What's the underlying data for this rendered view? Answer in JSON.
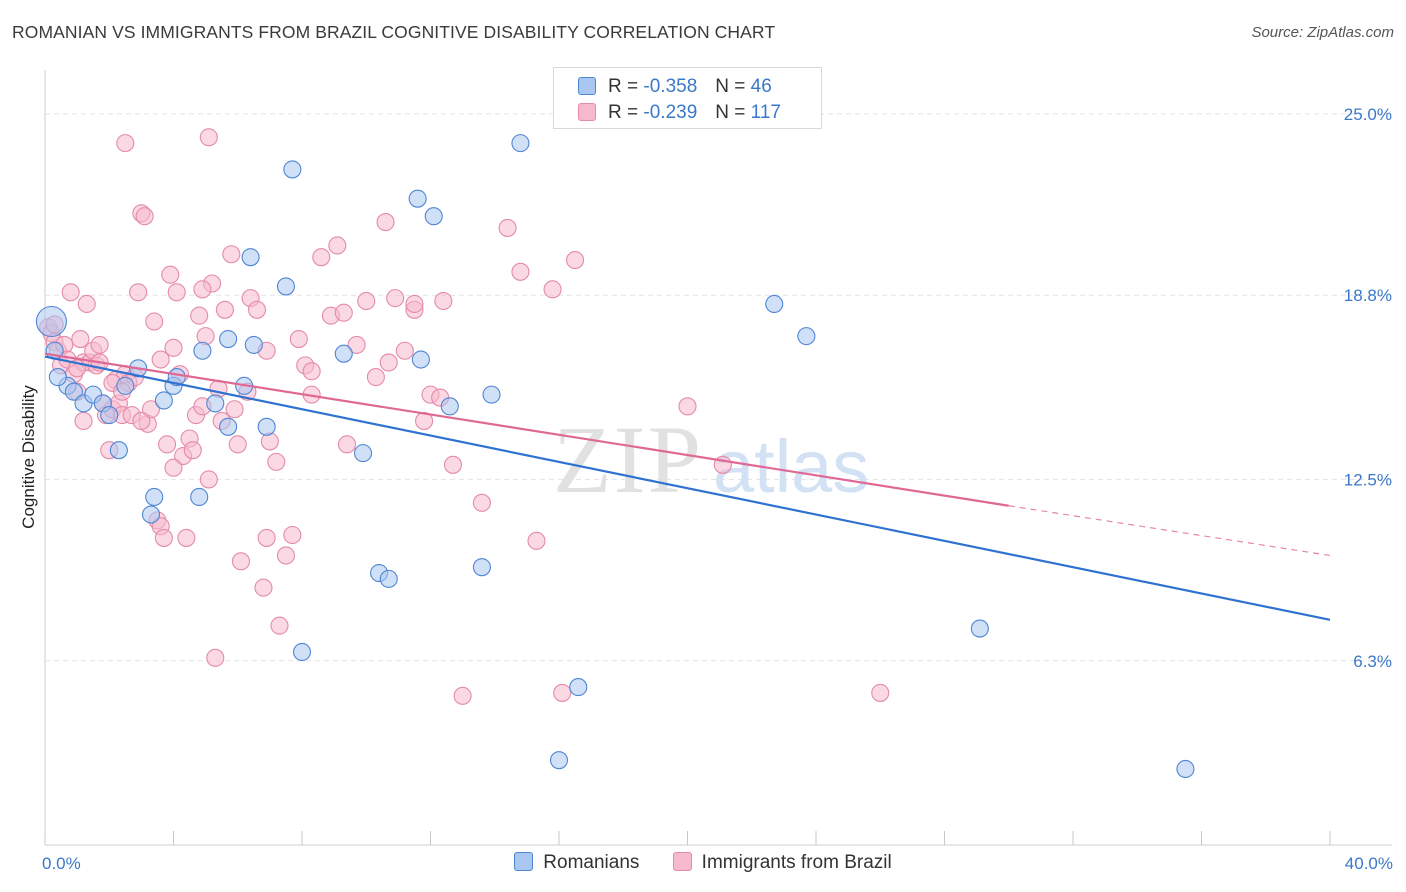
{
  "title": "ROMANIAN VS IMMIGRANTS FROM BRAZIL COGNITIVE DISABILITY CORRELATION CHART",
  "source": "Source: ZipAtlas.com",
  "colors": {
    "romanians_fill": "#a9c7f0",
    "romanians_stroke": "#4f86d4",
    "romanians_line": "#2f72cf",
    "brazil_fill": "#f6b9cd",
    "brazil_stroke": "#e58aa9",
    "brazil_line": "#e06894",
    "axis_text": "#3a78c9",
    "grid": "#e3e3e3"
  },
  "legend": {
    "r_label": "R =",
    "n_label": "N =",
    "romanians": {
      "r": "-0.358",
      "n": "46"
    },
    "brazil": {
      "r": "-0.239",
      "n": "117"
    }
  },
  "watermark": {
    "zip": "ZIP",
    "atlas": "atlas"
  },
  "chart_data": {
    "type": "scatter",
    "title": "ROMANIAN VS IMMIGRANTS FROM BRAZIL COGNITIVE DISABILITY CORRELATION CHART",
    "xlabel": "",
    "ylabel": "Cognitive Disability",
    "xlim": [
      0,
      40
    ],
    "ylim": [
      0,
      26.5
    ],
    "x_tick_labels": [
      "0.0%",
      "40.0%"
    ],
    "y_tick_values": [
      6.3,
      12.5,
      18.8,
      25.0
    ],
    "y_tick_labels": [
      "6.3%",
      "12.5%",
      "18.8%",
      "25.0%"
    ],
    "grid": true,
    "legend_position": "top-center",
    "series": [
      {
        "name": "Romanians",
        "trend": {
          "x": [
            0,
            40
          ],
          "y": [
            16.7,
            7.7
          ]
        },
        "points": [
          [
            0.2,
            17.9
          ],
          [
            0.3,
            16.9
          ],
          [
            0.7,
            15.7
          ],
          [
            0.9,
            15.5
          ],
          [
            1.2,
            15.1
          ],
          [
            1.5,
            15.4
          ],
          [
            1.8,
            15.1
          ],
          [
            2.0,
            14.7
          ],
          [
            2.3,
            13.5
          ],
          [
            2.5,
            15.7
          ],
          [
            2.9,
            16.3
          ],
          [
            3.3,
            11.3
          ],
          [
            3.4,
            11.9
          ],
          [
            3.7,
            15.2
          ],
          [
            4.0,
            15.7
          ],
          [
            4.1,
            16.0
          ],
          [
            4.8,
            11.9
          ],
          [
            4.9,
            16.9
          ],
          [
            5.3,
            15.1
          ],
          [
            5.7,
            14.3
          ],
          [
            6.2,
            15.7
          ],
          [
            5.7,
            17.3
          ],
          [
            6.5,
            17.1
          ],
          [
            6.4,
            20.1
          ],
          [
            6.9,
            14.3
          ],
          [
            7.5,
            19.1
          ],
          [
            7.7,
            23.1
          ],
          [
            8.0,
            6.6
          ],
          [
            9.3,
            16.8
          ],
          [
            9.9,
            13.4
          ],
          [
            10.4,
            9.3
          ],
          [
            10.7,
            9.1
          ],
          [
            11.6,
            22.1
          ],
          [
            11.7,
            16.6
          ],
          [
            12.1,
            21.5
          ],
          [
            12.6,
            15.0
          ],
          [
            13.6,
            9.5
          ],
          [
            13.9,
            15.4
          ],
          [
            14.8,
            24.0
          ],
          [
            16.0,
            2.9
          ],
          [
            16.6,
            5.4
          ],
          [
            22.7,
            18.5
          ],
          [
            23.7,
            17.4
          ],
          [
            29.1,
            7.4
          ],
          [
            35.5,
            2.6
          ],
          [
            0.4,
            16.0
          ]
        ]
      },
      {
        "name": "Immigrants from Brazil",
        "trend": {
          "x": [
            0,
            30
          ],
          "y": [
            16.8,
            11.6
          ]
        },
        "trend_dashed": {
          "x": [
            30,
            40
          ],
          "y": [
            11.6,
            9.9
          ]
        },
        "points": [
          [
            0.1,
            17.7
          ],
          [
            0.2,
            17.5
          ],
          [
            0.3,
            17.2
          ],
          [
            0.4,
            16.9
          ],
          [
            0.5,
            16.4
          ],
          [
            0.6,
            17.1
          ],
          [
            0.7,
            16.6
          ],
          [
            0.8,
            18.9
          ],
          [
            0.9,
            16.1
          ],
          [
            1.0,
            15.5
          ],
          [
            1.1,
            17.3
          ],
          [
            1.2,
            16.5
          ],
          [
            1.3,
            18.5
          ],
          [
            1.4,
            16.5
          ],
          [
            1.5,
            16.9
          ],
          [
            1.6,
            16.4
          ],
          [
            1.7,
            17.1
          ],
          [
            1.8,
            15.1
          ],
          [
            1.9,
            14.7
          ],
          [
            2.0,
            13.5
          ],
          [
            2.1,
            14.9
          ],
          [
            2.2,
            15.9
          ],
          [
            2.3,
            15.1
          ],
          [
            2.4,
            14.7
          ],
          [
            2.5,
            16.1
          ],
          [
            2.6,
            15.8
          ],
          [
            2.7,
            14.7
          ],
          [
            2.8,
            16.0
          ],
          [
            2.9,
            18.9
          ],
          [
            3.0,
            21.6
          ],
          [
            3.1,
            21.5
          ],
          [
            3.2,
            14.4
          ],
          [
            3.3,
            14.9
          ],
          [
            3.4,
            17.9
          ],
          [
            3.5,
            11.1
          ],
          [
            3.6,
            10.9
          ],
          [
            3.7,
            10.5
          ],
          [
            3.8,
            13.7
          ],
          [
            3.9,
            19.5
          ],
          [
            4.0,
            17.0
          ],
          [
            4.1,
            18.9
          ],
          [
            4.2,
            16.1
          ],
          [
            4.3,
            13.3
          ],
          [
            4.4,
            10.5
          ],
          [
            4.5,
            13.9
          ],
          [
            4.6,
            13.5
          ],
          [
            4.7,
            14.7
          ],
          [
            4.8,
            18.1
          ],
          [
            4.9,
            15.0
          ],
          [
            5.0,
            17.4
          ],
          [
            5.1,
            12.5
          ],
          [
            5.2,
            19.2
          ],
          [
            5.3,
            6.4
          ],
          [
            5.4,
            15.6
          ],
          [
            5.5,
            14.5
          ],
          [
            5.6,
            18.3
          ],
          [
            5.8,
            20.2
          ],
          [
            5.9,
            14.9
          ],
          [
            6.0,
            13.7
          ],
          [
            6.1,
            9.7
          ],
          [
            6.3,
            15.5
          ],
          [
            6.4,
            18.7
          ],
          [
            6.6,
            18.3
          ],
          [
            6.8,
            8.8
          ],
          [
            6.9,
            16.9
          ],
          [
            7.0,
            13.8
          ],
          [
            7.2,
            13.1
          ],
          [
            7.5,
            9.9
          ],
          [
            7.7,
            10.6
          ],
          [
            7.9,
            17.3
          ],
          [
            8.1,
            16.4
          ],
          [
            8.3,
            15.4
          ],
          [
            8.6,
            20.1
          ],
          [
            8.9,
            18.1
          ],
          [
            9.1,
            20.5
          ],
          [
            9.4,
            13.7
          ],
          [
            9.7,
            17.1
          ],
          [
            10.0,
            18.6
          ],
          [
            10.3,
            16.0
          ],
          [
            10.6,
            21.3
          ],
          [
            10.9,
            18.7
          ],
          [
            11.2,
            16.9
          ],
          [
            11.5,
            18.3
          ],
          [
            11.8,
            14.5
          ],
          [
            12.0,
            15.4
          ],
          [
            12.4,
            18.6
          ],
          [
            12.7,
            13.0
          ],
          [
            13.0,
            5.1
          ],
          [
            13.6,
            11.7
          ],
          [
            14.4,
            21.1
          ],
          [
            14.8,
            19.6
          ],
          [
            15.3,
            10.4
          ],
          [
            15.8,
            19.0
          ],
          [
            16.1,
            5.2
          ],
          [
            16.5,
            20.0
          ],
          [
            20.0,
            15.0
          ],
          [
            21.1,
            13.0
          ],
          [
            26.0,
            5.2
          ],
          [
            2.5,
            24.0
          ],
          [
            5.1,
            24.2
          ],
          [
            2.1,
            15.8
          ],
          [
            1.2,
            14.5
          ],
          [
            3.6,
            16.6
          ],
          [
            4.0,
            12.9
          ],
          [
            4.9,
            19.0
          ],
          [
            6.9,
            10.5
          ],
          [
            7.3,
            7.5
          ],
          [
            8.3,
            16.2
          ],
          [
            9.3,
            18.2
          ],
          [
            10.7,
            16.5
          ],
          [
            11.5,
            18.5
          ],
          [
            12.3,
            15.3
          ],
          [
            1.0,
            16.3
          ],
          [
            1.7,
            16.5
          ],
          [
            0.3,
            17.8
          ],
          [
            2.4,
            15.5
          ],
          [
            3.0,
            14.5
          ]
        ]
      }
    ]
  },
  "bottom_legend": {
    "romanians": "Romanians",
    "brazil": "Immigrants from Brazil"
  }
}
